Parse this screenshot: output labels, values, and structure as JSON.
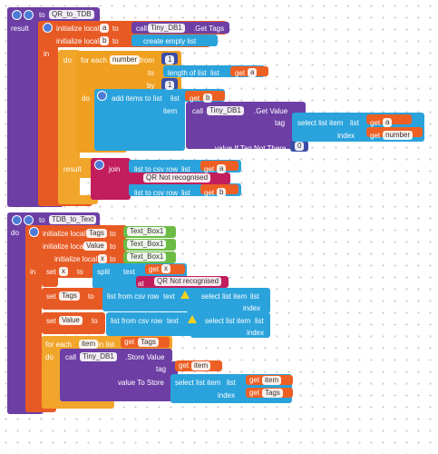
{
  "procedures": [
    {
      "texts": [
        "to",
        "QR_to_TDB",
        "result",
        "initialize local",
        "a",
        "to",
        "call",
        "Tiny_DB1",
        ".Get Tags",
        "initialize local",
        "b",
        "to",
        "create empty list",
        "in",
        "do",
        "for each",
        "number",
        "from",
        "1",
        "to",
        "length of list",
        "list",
        "get",
        "a",
        "by",
        "1",
        "do",
        "add items to list",
        "list",
        "get",
        "b",
        "item",
        "call",
        "Tiny_DB1",
        ".Get Value",
        "tag",
        "select list item",
        "list",
        "get",
        "a",
        "index",
        "get",
        "number",
        "value If Tag Not There",
        "0",
        "result",
        "join",
        "list to csv row",
        "list",
        "get",
        "a",
        "QR Not recognised",
        "list to csv row",
        "list",
        "get",
        "b"
      ]
    },
    {
      "texts": [
        "to",
        "TDB_to_Text",
        "do",
        "initialize local",
        "Tags",
        "to",
        "Text_Box1",
        "initialize local",
        "Value",
        "to",
        "Text_Box1",
        "initialize local",
        "x",
        "to",
        "Text_Box1",
        "in",
        "set",
        "x",
        "to",
        "split",
        "text",
        "get",
        "x",
        "at",
        "QR Not recognised",
        "set",
        "Tags",
        "to",
        "list from csv row",
        "text",
        "select list item",
        "list",
        "index",
        "set",
        "Value",
        "to",
        "list from csv row",
        "text",
        "select list item",
        "list",
        "index",
        "for each",
        "item",
        "in list",
        "get",
        "Tags",
        "do",
        "call",
        "Tiny_DB1",
        ".Store Value",
        "tag",
        "get",
        "item",
        "value To Store",
        "select list item",
        "list",
        "get",
        "item",
        "index",
        "get",
        "Tags"
      ]
    }
  ]
}
